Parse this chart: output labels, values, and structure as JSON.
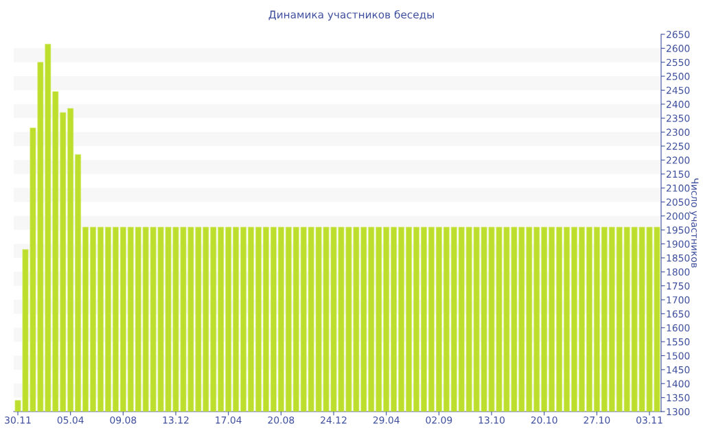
{
  "chart_data": {
    "type": "bar",
    "title": "Динамика участников беседы",
    "ylabel": "Число участников",
    "categories": [
      "30.11",
      null,
      null,
      null,
      null,
      null,
      null,
      "05.04",
      null,
      null,
      null,
      null,
      null,
      null,
      "09.08",
      null,
      null,
      null,
      null,
      null,
      null,
      "13.12",
      null,
      null,
      null,
      null,
      null,
      null,
      "17.04",
      null,
      null,
      null,
      null,
      null,
      null,
      "20.08",
      null,
      null,
      null,
      null,
      null,
      null,
      "24.12",
      null,
      null,
      null,
      null,
      null,
      null,
      "29.04",
      null,
      null,
      null,
      null,
      null,
      null,
      "02.09",
      null,
      null,
      null,
      null,
      null,
      null,
      "13.10",
      null,
      null,
      null,
      null,
      null,
      null,
      "20.10",
      null,
      null,
      null,
      null,
      null,
      null,
      "27.10",
      null,
      null,
      null,
      null,
      null,
      null,
      "03.11",
      null
    ],
    "values": [
      1340,
      1880,
      2315,
      2550,
      2615,
      2445,
      2370,
      2385,
      2220,
      1960,
      1960,
      1960,
      1960,
      1960,
      1960,
      1960,
      1960,
      1960,
      1960,
      1960,
      1960,
      1960,
      1960,
      1960,
      1960,
      1960,
      1960,
      1960,
      1960,
      1960,
      1960,
      1960,
      1960,
      1960,
      1960,
      1960,
      1960,
      1960,
      1960,
      1960,
      1960,
      1960,
      1960,
      1960,
      1960,
      1960,
      1960,
      1960,
      1960,
      1960,
      1960,
      1960,
      1960,
      1960,
      1960,
      1960,
      1960,
      1960,
      1960,
      1960,
      1960,
      1960,
      1960,
      1960,
      1960,
      1960,
      1960,
      1960,
      1960,
      1960,
      1960,
      1960,
      1960,
      1960,
      1960,
      1960,
      1960,
      1960,
      1960,
      1960,
      1960,
      1960,
      1960,
      1960,
      1960,
      1960
    ],
    "color": "#bede2e",
    "ylim": [
      1300,
      2650
    ],
    "yticks": [
      1300,
      1350,
      1400,
      1450,
      1500,
      1550,
      1600,
      1650,
      1700,
      1750,
      1800,
      1850,
      1900,
      1950,
      2000,
      2050,
      2100,
      2150,
      2200,
      2250,
      2300,
      2350,
      2400,
      2450,
      2500,
      2550,
      2600,
      2650
    ],
    "bands": [
      {
        "axis": "y",
        "from": 1350,
        "to": 1400,
        "color": "#f7f7f7"
      },
      {
        "axis": "y",
        "from": 1450,
        "to": 1500,
        "color": "#f7f7f7"
      },
      {
        "axis": "y",
        "from": 1550,
        "to": 1600,
        "color": "#f7f7f7"
      },
      {
        "axis": "y",
        "from": 1650,
        "to": 1700,
        "color": "#f7f7f7"
      },
      {
        "axis": "y",
        "from": 1750,
        "to": 1800,
        "color": "#f7f7f7"
      },
      {
        "axis": "y",
        "from": 1850,
        "to": 1900,
        "color": "#f7f7f7"
      },
      {
        "axis": "y",
        "from": 1950,
        "to": 2000,
        "color": "#f7f7f7"
      },
      {
        "axis": "y",
        "from": 2050,
        "to": 2100,
        "color": "#f7f7f7"
      },
      {
        "axis": "y",
        "from": 2150,
        "to": 2200,
        "color": "#f7f7f7"
      },
      {
        "axis": "y",
        "from": 2250,
        "to": 2300,
        "color": "#f7f7f7"
      },
      {
        "axis": "y",
        "from": 2350,
        "to": 2400,
        "color": "#f7f7f7"
      },
      {
        "axis": "y",
        "from": 2450,
        "to": 2500,
        "color": "#f7f7f7"
      },
      {
        "axis": "y",
        "from": 2550,
        "to": 2600,
        "color": "#f7f7f7"
      }
    ]
  }
}
